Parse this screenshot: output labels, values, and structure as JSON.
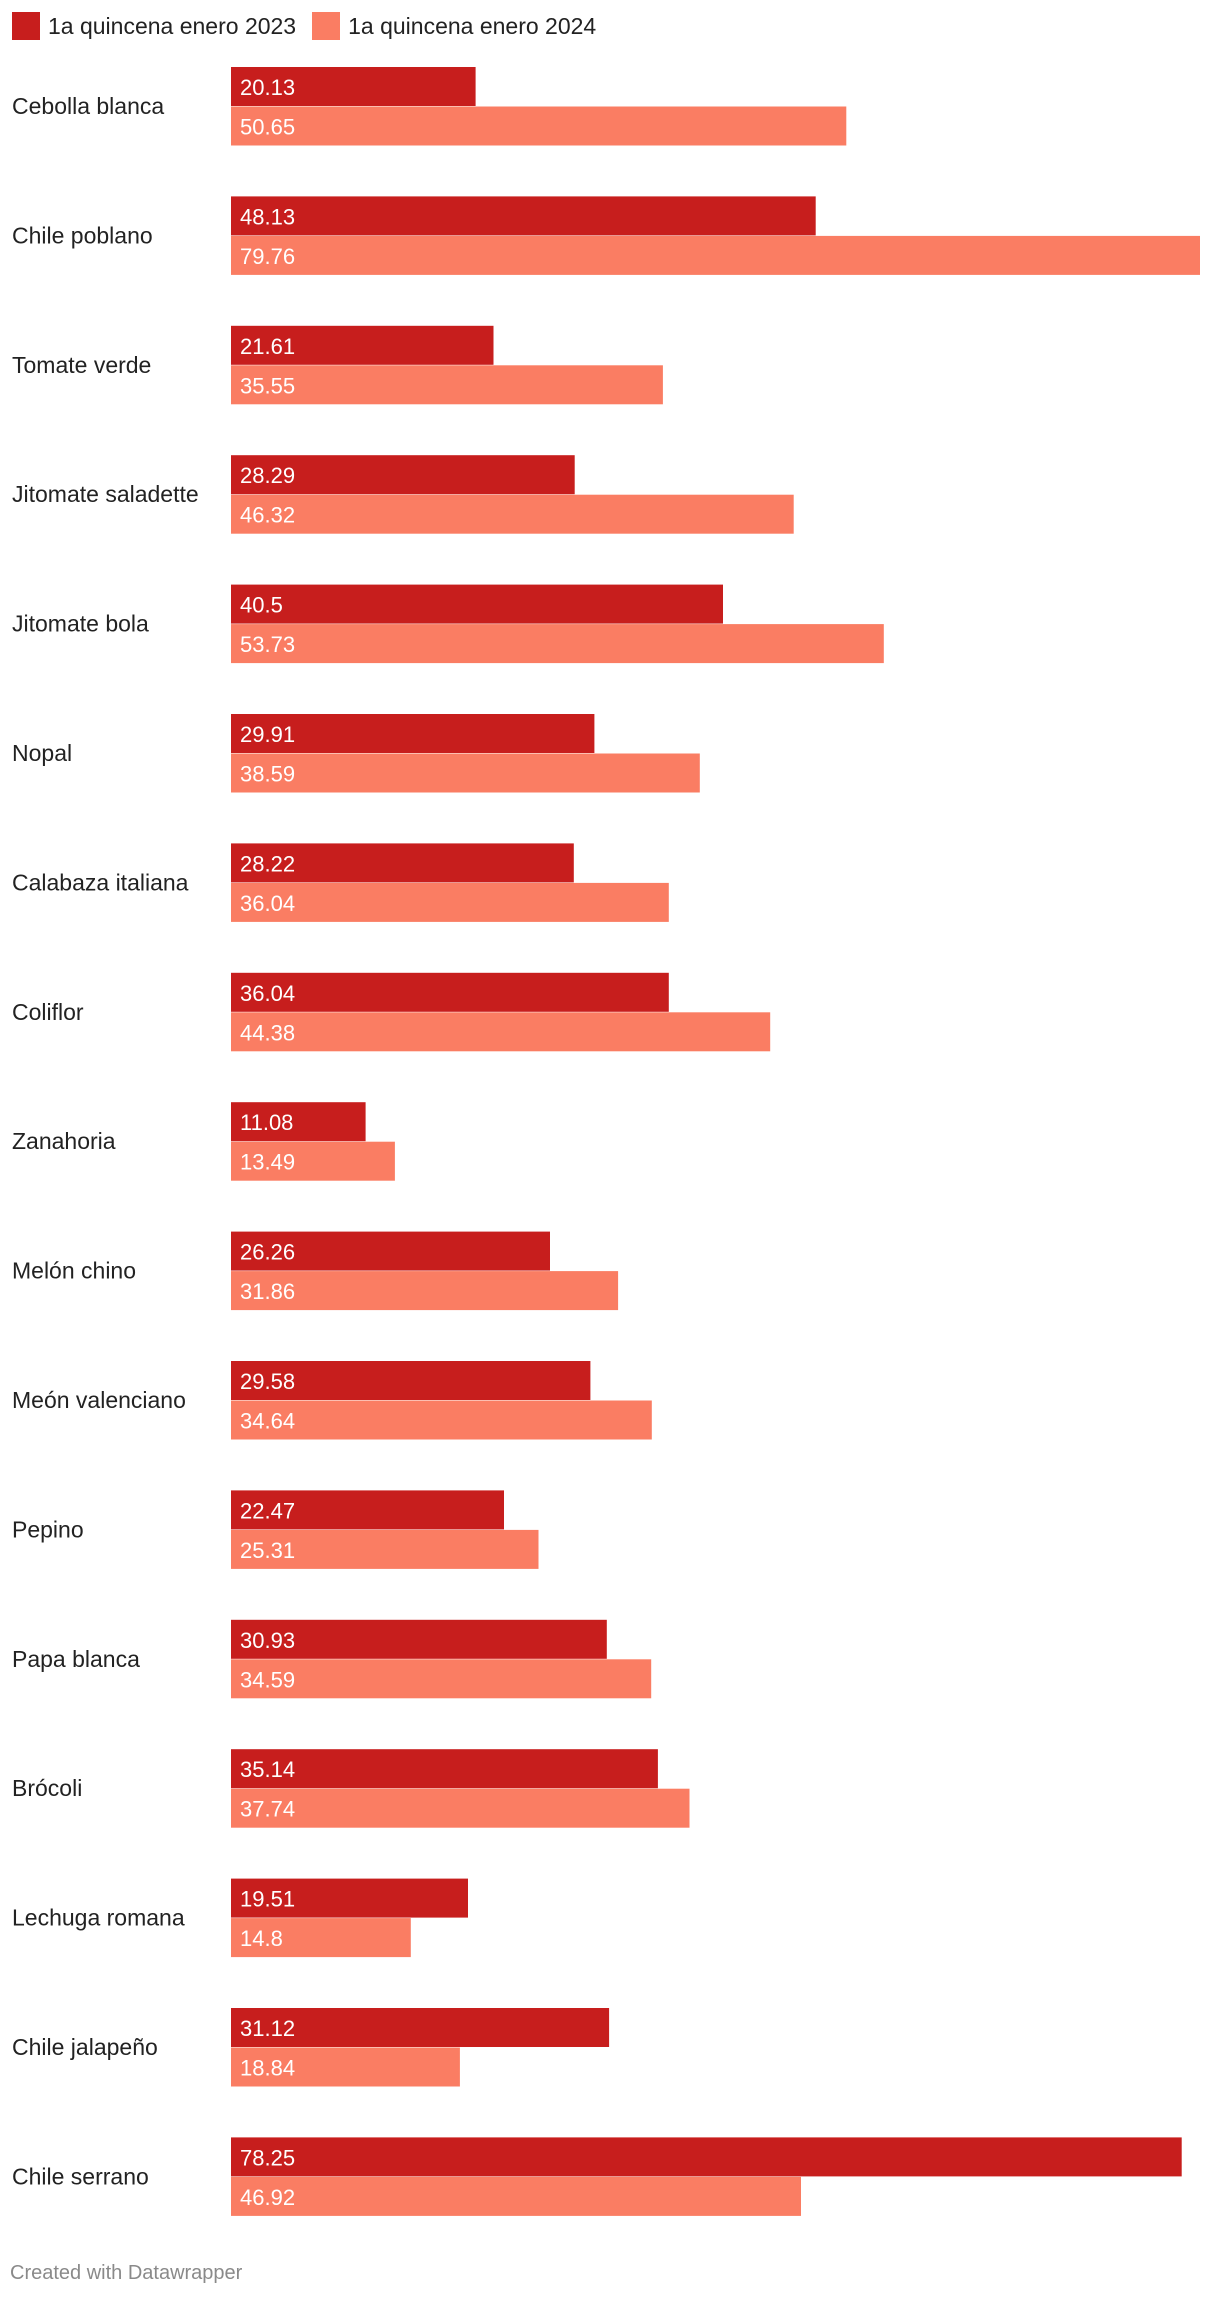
{
  "chart_data": {
    "type": "bar",
    "orientation": "horizontal",
    "categories": [
      "Cebolla blanca",
      "Chile poblano",
      "Tomate verde",
      "Jitomate saladette",
      "Jitomate bola",
      "Nopal",
      "Calabaza italiana",
      "Coliflor",
      "Zanahoria",
      "Melón chino",
      "Meón valenciano",
      "Pepino",
      "Papa blanca",
      "Brócoli",
      "Lechuga romana",
      "Chile jalapeño",
      "Chile serrano"
    ],
    "series": [
      {
        "name": "1a quincena enero 2023",
        "color": "#c71e1d",
        "values": [
          20.13,
          48.13,
          21.61,
          28.29,
          40.5,
          29.91,
          28.22,
          36.04,
          11.08,
          26.26,
          29.58,
          22.47,
          30.93,
          35.14,
          19.51,
          31.12,
          78.25
        ]
      },
      {
        "name": "1a quincena enero 2024",
        "color": "#fa7d63",
        "values": [
          50.65,
          79.76,
          35.55,
          46.32,
          53.73,
          38.59,
          36.04,
          44.38,
          13.49,
          31.86,
          34.64,
          25.31,
          34.59,
          37.74,
          14.8,
          18.84,
          46.92
        ]
      }
    ],
    "xlim": [
      0,
      79.76
    ],
    "legend_position": "top-left",
    "grid": false
  },
  "footer": "Created with Datawrapper"
}
